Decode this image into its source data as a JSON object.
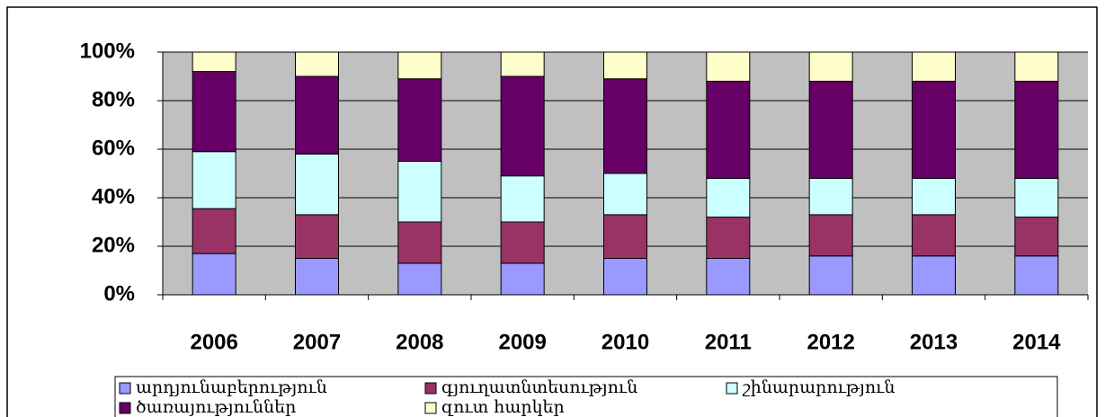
{
  "chart_data": {
    "type": "stacked_bar_100",
    "categories": [
      "2006",
      "2007",
      "2008",
      "2009",
      "2010",
      "2011",
      "2012",
      "2013",
      "2014"
    ],
    "series": [
      {
        "name": "արդյունաբերություն",
        "color": "#9999ff",
        "values": [
          17,
          15,
          13,
          13,
          15,
          15,
          16,
          16,
          16
        ]
      },
      {
        "name": "գյուղատնտեսություն",
        "color": "#993366",
        "values": [
          18.5,
          18,
          17,
          17,
          18,
          17,
          17,
          17,
          16
        ]
      },
      {
        "name": "շինարարություն",
        "color": "#ccffff",
        "values": [
          23.5,
          25,
          25,
          19,
          17,
          16,
          15,
          15,
          16
        ]
      },
      {
        "name": "ծառայություններ",
        "color": "#660066",
        "values": [
          33,
          32,
          34,
          41,
          39,
          40,
          40,
          40,
          40
        ]
      },
      {
        "name": "զուտ հարկեր",
        "color": "#ffffcc",
        "values": [
          8,
          10,
          11,
          10,
          11,
          12,
          12,
          12,
          12
        ]
      }
    ],
    "ylim": [
      0,
      100
    ],
    "yticks": [
      {
        "value": 0,
        "label": "0%"
      },
      {
        "value": 20,
        "label": "20%"
      },
      {
        "value": 40,
        "label": "40%"
      },
      {
        "value": 60,
        "label": "60%"
      },
      {
        "value": 80,
        "label": "80%"
      },
      {
        "value": 100,
        "label": "100%"
      }
    ],
    "grid": true,
    "plot_background": "#c0c0c0",
    "legend": "bottom"
  }
}
